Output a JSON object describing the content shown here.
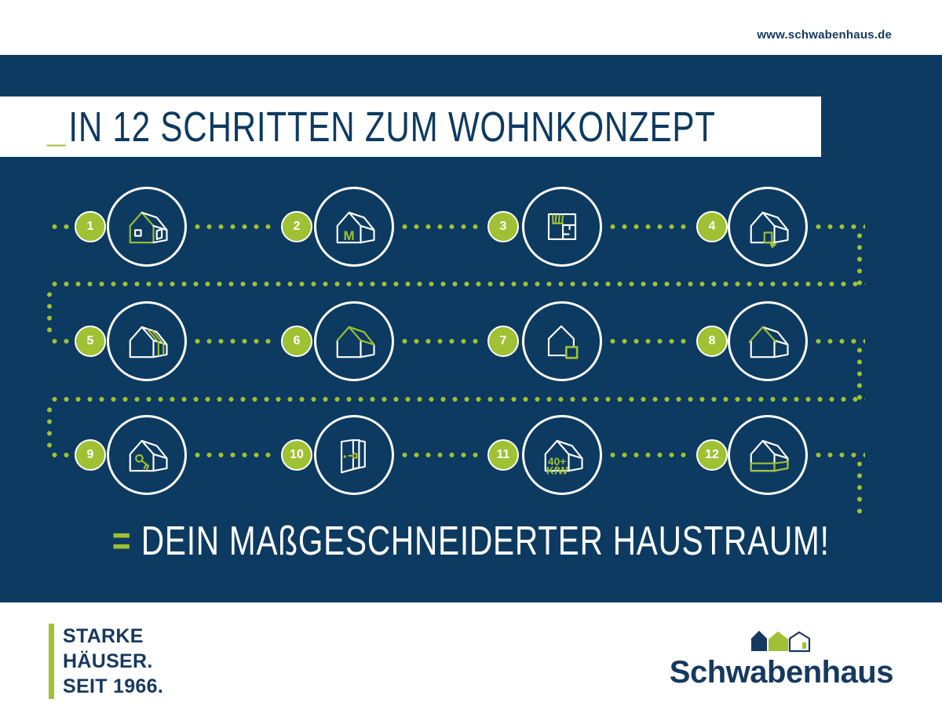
{
  "colors": {
    "navy": "#0d3a60",
    "green": "#9fc133",
    "white": "#ffffff",
    "logo_navy": "#16395f"
  },
  "topbar": {
    "url": "www.schwabenhaus.de"
  },
  "banner": {
    "underscore": "_",
    "title": "IN 12 SCHRITTEN ZUM WOHNKONZEPT"
  },
  "steps": [
    {
      "number": "1",
      "icon": "house-exterior"
    },
    {
      "number": "2",
      "icon": "model-house",
      "icon_text": [
        "M"
      ]
    },
    {
      "number": "3",
      "icon": "floor-plan"
    },
    {
      "number": "4",
      "icon": "house-entrance"
    },
    {
      "number": "5",
      "icon": "house-construction"
    },
    {
      "number": "6",
      "icon": "house-roof"
    },
    {
      "number": "7",
      "icon": "house-annex"
    },
    {
      "number": "8",
      "icon": "house-roof-edge"
    },
    {
      "number": "9",
      "icon": "house-key"
    },
    {
      "number": "10",
      "icon": "door-selection"
    },
    {
      "number": "11",
      "icon": "kfw-efficiency-house",
      "icon_text": [
        "40+",
        "KfW"
      ]
    },
    {
      "number": "12",
      "icon": "house-basement"
    }
  ],
  "slogan": {
    "equals": "=",
    "text": "DEIN MAßGESCHNEIDERTER HAUSTRAUM!"
  },
  "footer": {
    "tagline_lines": [
      "STARKE",
      "HÄUSER.",
      "SEIT 1966."
    ],
    "logo_text": "Schwabenhaus"
  }
}
